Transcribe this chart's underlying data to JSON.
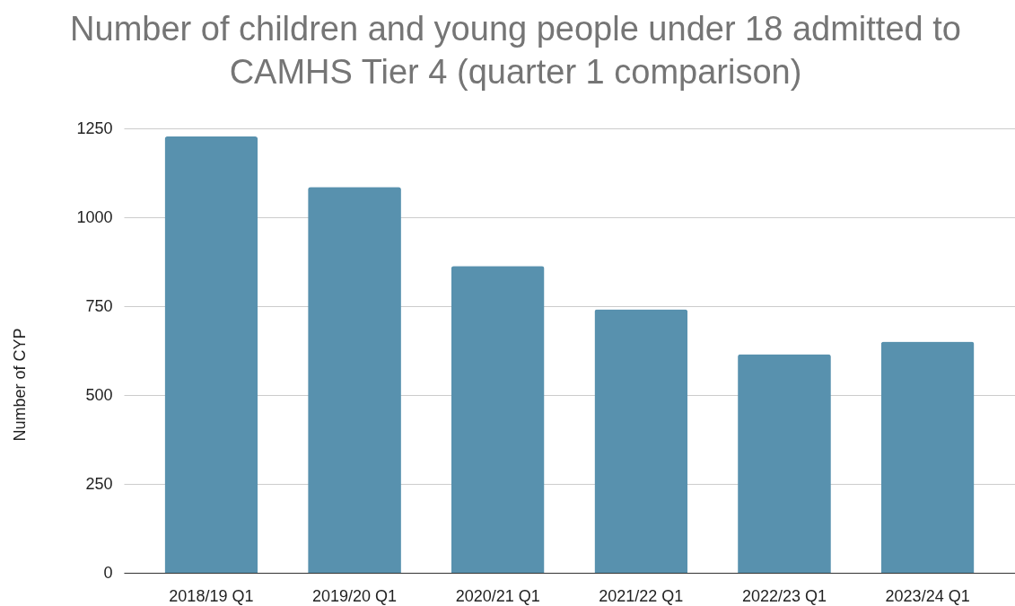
{
  "chart_data": {
    "type": "bar",
    "title": "Number of children and young people under 18 admitted to CAMHS Tier 4 (quarter 1 comparison)",
    "ylabel": "Number of CYP",
    "categories": [
      "2018/19 Q1",
      "2019/20 Q1",
      "2020/21 Q1",
      "2021/22 Q1",
      "2022/23 Q1",
      "2023/24 Q1"
    ],
    "values": [
      1227,
      1085,
      863,
      741,
      615,
      650
    ],
    "color": "#5891ae",
    "ylim": [
      0,
      1250
    ],
    "yticks": [
      0,
      250,
      500,
      750,
      1000,
      1250
    ],
    "grid": "y"
  }
}
